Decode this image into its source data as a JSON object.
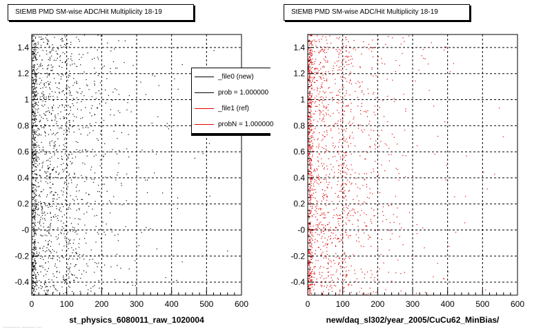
{
  "colors": {
    "series_new": "#000000",
    "series_ref": "#e00000",
    "grid": "#000000",
    "frame": "#000000"
  },
  "legend": {
    "entries": [
      {
        "label": "_file0 (new)",
        "color": "#000000"
      },
      {
        "label": "prob = 1.000000",
        "color": "#000000"
      },
      {
        "label": "_file1 (ref)",
        "color": "#e00000"
      },
      {
        "label": "probN = 1.000000",
        "color": "#e00000"
      }
    ]
  },
  "footer": {
    "text": "............. ..........  ...."
  },
  "chart_data": [
    {
      "type": "scatter",
      "title": "StEMB PMD SM-wise ADC/Hit Multiplicity 18-19",
      "xlabel": "st_physics_6080011_raw_1020004",
      "ylabel": "",
      "xlim": [
        0,
        600
      ],
      "ylim": [
        -0.5,
        1.5
      ],
      "xticks": [
        0,
        100,
        200,
        300,
        400,
        500,
        600
      ],
      "xtick_labels": [
        "0",
        "100",
        "200",
        "300",
        "400",
        "500",
        "600"
      ],
      "yticks": [
        -0.4,
        -0.2,
        0,
        0.2,
        0.4,
        0.6,
        0.8,
        1.0,
        1.2,
        1.4
      ],
      "ytick_labels": [
        "-0.4",
        "-0.2",
        "-0",
        "0.2",
        "0.4",
        "0.6",
        "0.8",
        "1",
        "1.2",
        "1.4"
      ],
      "grid": true,
      "series": [
        {
          "color": "#000000",
          "density": "dense near x=0-30, band near x=100, sparse beyond x=200"
        }
      ]
    },
    {
      "type": "scatter",
      "title": "StEMB PMD SM-wise ADC/Hit Multiplicity 18-19",
      "xlabel": "new/daq_sl302/year_2005/CuCu62_MinBias/",
      "ylabel": "",
      "xlim": [
        0,
        600
      ],
      "ylim": [
        -0.5,
        1.5
      ],
      "xticks": [
        0,
        100,
        200,
        300,
        400,
        500,
        600
      ],
      "xtick_labels": [
        "0",
        "100",
        "200",
        "300",
        "400",
        "500",
        "600"
      ],
      "yticks": [
        -0.4,
        -0.2,
        0,
        0.2,
        0.4,
        0.6,
        0.8,
        1.0,
        1.2,
        1.4
      ],
      "ytick_labels": [
        "-0.4",
        "-0.2",
        "-0",
        "0.2",
        "0.4",
        "0.6",
        "0.8",
        "1",
        "1.2",
        "1.4"
      ],
      "grid": true,
      "series": [
        {
          "color": "#e00000",
          "density": "dense near x=0-30, band near x=100, sparse beyond x=200"
        }
      ]
    }
  ]
}
